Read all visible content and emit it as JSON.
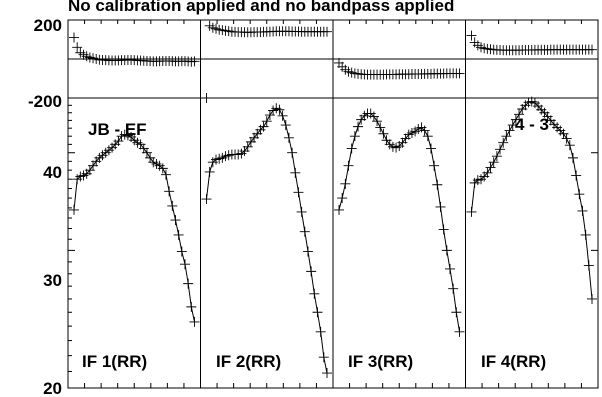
{
  "chart_data": [
    {
      "type": "scatter",
      "role": "phase",
      "title": "No calibration applied and no bandpass applied",
      "y_ticks": [
        "200",
        "-200"
      ],
      "ylim": [
        -200,
        200
      ],
      "grid": false,
      "zero_line": true,
      "panels": [
        {
          "y": [
            110,
            60,
            32,
            22,
            14,
            8,
            4,
            0,
            -4,
            -5,
            -6,
            -7,
            -8,
            -8,
            -7,
            -6,
            -6,
            -5,
            -5,
            -6,
            -7,
            -8,
            -9,
            -10,
            -11,
            -12,
            -12,
            -11,
            -10,
            -10,
            -10,
            -11,
            -12,
            -12,
            -11,
            -11,
            -12,
            -14,
            -12
          ]
        },
        {
          "y": [
            -200,
            170,
            160,
            155,
            150,
            148,
            145,
            143,
            140,
            139,
            138,
            138,
            137,
            137,
            137,
            138,
            138,
            138,
            139,
            140,
            140,
            141,
            142,
            142,
            142,
            142,
            142,
            141,
            141,
            141,
            140,
            140,
            140,
            140,
            140,
            140,
            140,
            140,
            140
          ]
        },
        {
          "y": [
            -20,
            -40,
            -55,
            -65,
            -70,
            -74,
            -76,
            -78,
            -79,
            -80,
            -80,
            -80,
            -80,
            -80,
            -80,
            -79,
            -79,
            -79,
            -79,
            -78,
            -78,
            -78,
            -78,
            -77,
            -77,
            -77,
            -77,
            -76,
            -76,
            -76,
            -75,
            -75,
            -75,
            -75,
            -74,
            -74,
            -74,
            -74,
            -74
          ]
        },
        {
          "y": [
            120,
            85,
            70,
            60,
            55,
            52,
            50,
            48,
            47,
            46,
            45,
            45,
            45,
            45,
            45,
            45,
            46,
            46,
            46,
            46,
            47,
            47,
            47,
            47,
            47,
            48,
            48,
            48,
            48,
            48,
            48,
            48,
            48,
            48,
            48,
            48,
            48,
            48,
            48
          ]
        }
      ]
    },
    {
      "type": "line",
      "role": "amplitude",
      "baseline_label": "JB - EF",
      "y_ticks": [
        40,
        30,
        20
      ],
      "ylim": [
        20,
        47
      ],
      "log_scale": true,
      "grid": false,
      "panels": [
        {
          "label": "IF 1(RR)",
          "annotation": "",
          "y": [
            33.8,
            37.0,
            37.3,
            37.4,
            37.6,
            38.0,
            38.5,
            39.0,
            39.4,
            39.7,
            40.0,
            40.3,
            40.6,
            41.0,
            41.4,
            42.0,
            42.2,
            42.1,
            41.9,
            41.5,
            41.2,
            41.0,
            40.5,
            40.0,
            39.4,
            38.9,
            38.7,
            38.5,
            38.2,
            37.5,
            35.7,
            34.2,
            32.8,
            31.4,
            29.9,
            28.8,
            27.2,
            25.4,
            24.3
          ]
        },
        {
          "label": "IF 2(RR)",
          "annotation": "",
          "y": [
            34.9,
            37.8,
            38.9,
            39.2,
            39.3,
            39.4,
            39.6,
            39.7,
            39.8,
            39.8,
            39.8,
            39.9,
            40.2,
            40.7,
            41.3,
            41.8,
            42.3,
            42.8,
            43.2,
            43.9,
            44.7,
            45.3,
            45.6,
            45.4,
            44.6,
            43.4,
            41.8,
            40.0,
            37.7,
            35.6,
            33.6,
            31.7,
            29.9,
            28.2,
            26.4,
            25.0,
            23.6,
            21.9,
            20.9
          ]
        },
        {
          "label": "IF 3(RR)",
          "annotation": "",
          "y": [
            33.8,
            35.0,
            36.5,
            38.5,
            40.5,
            42.0,
            43.2,
            44.1,
            44.6,
            44.9,
            44.9,
            44.5,
            43.9,
            43.1,
            42.3,
            41.5,
            41.0,
            40.7,
            40.6,
            40.8,
            41.2,
            41.7,
            42.2,
            42.4,
            42.6,
            42.9,
            43.1,
            42.7,
            42.0,
            40.5,
            38.5,
            36.4,
            34.1,
            31.9,
            30.0,
            28.4,
            26.8,
            25.0,
            23.6
          ]
        },
        {
          "label": "IF 4(RR)",
          "annotation": "4 - 3",
          "y": [
            33.6,
            36.6,
            36.9,
            37.0,
            37.3,
            37.7,
            38.3,
            38.9,
            39.6,
            40.4,
            41.2,
            42.0,
            42.7,
            43.4,
            44.1,
            44.8,
            45.5,
            46.0,
            46.4,
            46.5,
            46.3,
            45.9,
            45.4,
            45.0,
            44.5,
            44.0,
            43.5,
            43.1,
            42.7,
            42.3,
            41.7,
            40.9,
            39.4,
            37.4,
            35.4,
            33.7,
            31.4,
            28.7,
            26.0
          ]
        }
      ]
    }
  ]
}
